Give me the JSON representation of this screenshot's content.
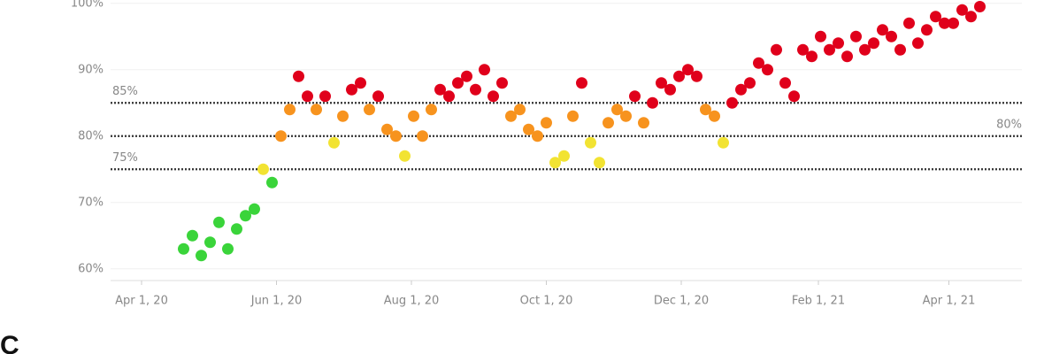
{
  "chart_data": {
    "type": "scatter",
    "x": [
      "2020-04-20",
      "2020-04-24",
      "2020-04-28",
      "2020-05-02",
      "2020-05-06",
      "2020-05-10",
      "2020-05-14",
      "2020-05-18",
      "2020-05-22",
      "2020-05-26",
      "2020-05-30",
      "2020-06-03",
      "2020-06-07",
      "2020-06-11",
      "2020-06-15",
      "2020-06-19",
      "2020-06-23",
      "2020-06-27",
      "2020-07-01",
      "2020-07-05",
      "2020-07-09",
      "2020-07-13",
      "2020-07-17",
      "2020-07-21",
      "2020-07-25",
      "2020-07-29",
      "2020-08-02",
      "2020-08-06",
      "2020-08-10",
      "2020-08-14",
      "2020-08-18",
      "2020-08-22",
      "2020-08-26",
      "2020-08-30",
      "2020-09-03",
      "2020-09-07",
      "2020-09-11",
      "2020-09-15",
      "2020-09-19",
      "2020-09-23",
      "2020-09-27",
      "2020-10-01",
      "2020-10-05",
      "2020-10-09",
      "2020-10-13",
      "2020-10-17",
      "2020-10-21",
      "2020-10-25",
      "2020-10-29",
      "2020-11-02",
      "2020-11-06",
      "2020-11-10",
      "2020-11-14",
      "2020-11-18",
      "2020-11-22",
      "2020-11-26",
      "2020-11-30",
      "2020-12-04",
      "2020-12-08",
      "2020-12-12",
      "2020-12-16",
      "2020-12-20",
      "2020-12-24",
      "2020-12-28",
      "2021-01-01",
      "2021-01-05",
      "2021-01-09",
      "2021-01-13",
      "2021-01-17",
      "2021-01-21",
      "2021-01-25",
      "2021-01-29",
      "2021-02-02",
      "2021-02-06",
      "2021-02-10",
      "2021-02-14",
      "2021-02-18",
      "2021-02-22",
      "2021-02-26",
      "2021-03-02",
      "2021-03-06",
      "2021-03-10",
      "2021-03-14",
      "2021-03-18",
      "2021-03-22",
      "2021-03-26",
      "2021-03-30",
      "2021-04-03",
      "2021-04-07",
      "2021-04-11",
      "2021-04-15"
    ],
    "values": [
      63,
      65,
      62,
      64,
      67,
      63,
      66,
      68,
      69,
      75,
      73,
      80,
      84,
      89,
      86,
      84,
      86,
      79,
      83,
      87,
      88,
      84,
      86,
      81,
      80,
      77,
      83,
      80,
      84,
      87,
      86,
      88,
      89,
      87,
      90,
      86,
      88,
      83,
      84,
      81,
      80,
      82,
      76,
      77,
      83,
      88,
      79,
      76,
      82,
      84,
      83,
      86,
      82,
      85,
      88,
      87,
      89,
      90,
      89,
      84,
      83,
      79,
      85,
      87,
      88,
      91,
      90,
      93,
      88,
      86,
      93,
      92,
      95,
      93,
      94,
      92,
      95,
      93,
      94,
      96,
      95,
      93,
      97,
      94,
      96,
      98,
      97,
      97,
      99,
      98,
      99.5
    ],
    "colors": [
      "#3ad43a",
      "#3ad43a",
      "#3ad43a",
      "#3ad43a",
      "#3ad43a",
      "#3ad43a",
      "#3ad43a",
      "#3ad43a",
      "#3ad43a",
      "#f2e332",
      "#3ad43a",
      "#f7931e",
      "#f7931e",
      "#e0001b",
      "#e0001b",
      "#f7931e",
      "#e0001b",
      "#f2e332",
      "#f7931e",
      "#e0001b",
      "#e0001b",
      "#f7931e",
      "#e0001b",
      "#f7931e",
      "#f7931e",
      "#f2e332",
      "#f7931e",
      "#f7931e",
      "#f7931e",
      "#e0001b",
      "#e0001b",
      "#e0001b",
      "#e0001b",
      "#e0001b",
      "#e0001b",
      "#e0001b",
      "#e0001b",
      "#f7931e",
      "#f7931e",
      "#f7931e",
      "#f7931e",
      "#f7931e",
      "#f2e332",
      "#f2e332",
      "#f7931e",
      "#e0001b",
      "#f2e332",
      "#f2e332",
      "#f7931e",
      "#f7931e",
      "#f7931e",
      "#e0001b",
      "#f7931e",
      "#e0001b",
      "#e0001b",
      "#e0001b",
      "#e0001b",
      "#e0001b",
      "#e0001b",
      "#f7931e",
      "#f7931e",
      "#f2e332",
      "#e0001b",
      "#e0001b",
      "#e0001b",
      "#e0001b",
      "#e0001b",
      "#e0001b",
      "#e0001b",
      "#e0001b",
      "#e0001b",
      "#e0001b",
      "#e0001b",
      "#e0001b",
      "#e0001b",
      "#e0001b",
      "#e0001b",
      "#e0001b",
      "#e0001b",
      "#e0001b",
      "#e0001b",
      "#e0001b",
      "#e0001b",
      "#e0001b",
      "#e0001b",
      "#e0001b",
      "#e0001b",
      "#e0001b",
      "#e0001b",
      "#e0001b",
      "#e0001b"
    ],
    "xlim": [
      "2020-03-18",
      "2021-05-04"
    ],
    "xticks": [
      {
        "value": "2020-04-01",
        "label": "Apr 1, 20"
      },
      {
        "value": "2020-06-01",
        "label": "Jun 1, 20"
      },
      {
        "value": "2020-08-01",
        "label": "Aug 1, 20"
      },
      {
        "value": "2020-10-01",
        "label": "Oct 1, 20"
      },
      {
        "value": "2020-12-01",
        "label": "Dec 1, 20"
      },
      {
        "value": "2021-02-01",
        "label": "Feb 1, 21"
      },
      {
        "value": "2021-04-01",
        "label": "Apr 1, 21"
      }
    ],
    "ylim": [
      58.5,
      100.5
    ],
    "yticks": [
      {
        "value": 60,
        "label": "60%"
      },
      {
        "value": 70,
        "label": "70%"
      },
      {
        "value": 80,
        "label": "80%"
      },
      {
        "value": 90,
        "label": "90%"
      },
      {
        "value": 100,
        "label": "100%"
      }
    ],
    "grid": true,
    "reference_lines": [
      {
        "value": 85,
        "label": "85%",
        "label_side": "left"
      },
      {
        "value": 80,
        "label": "80%",
        "label_side": "right"
      },
      {
        "value": 75,
        "label": "75%",
        "label_side": "left"
      }
    ],
    "next_panel_label": "C"
  }
}
